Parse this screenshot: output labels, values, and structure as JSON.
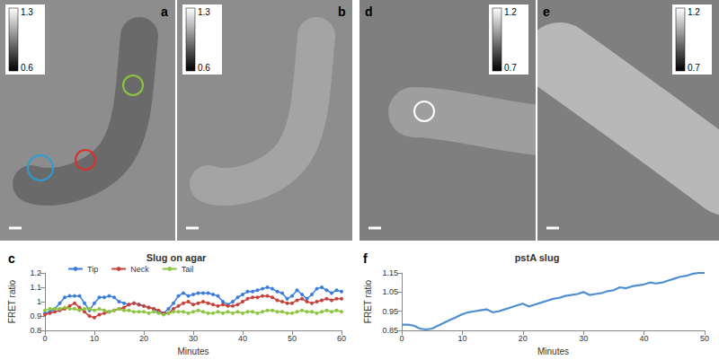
{
  "images": [
    {
      "label": "a",
      "colorbar": [
        0.6,
        1.3
      ]
    },
    {
      "label": "b",
      "colorbar": [
        0.6,
        1.3
      ]
    },
    {
      "label": "d",
      "colorbar": [
        0.7,
        1.2
      ]
    },
    {
      "label": "e",
      "colorbar": [
        0.7,
        1.2
      ]
    }
  ],
  "chart_data": [
    {
      "type": "line",
      "panel": "c",
      "title": "Slug on agar",
      "x_label": "Minutes",
      "y_label": "FRET ratio",
      "x": [
        0,
        1,
        2,
        3,
        4,
        5,
        6,
        7,
        8,
        9,
        10,
        11,
        12,
        13,
        14,
        15,
        16,
        17,
        18,
        19,
        20,
        21,
        22,
        23,
        24,
        25,
        26,
        27,
        28,
        29,
        30,
        31,
        32,
        33,
        34,
        35,
        36,
        37,
        38,
        39,
        40,
        41,
        42,
        43,
        44,
        45,
        46,
        47,
        48,
        49,
        50,
        51,
        52,
        53,
        54,
        55,
        56,
        57,
        58,
        59,
        60
      ],
      "series": [
        {
          "name": "Tip",
          "color": "#3b7ddd",
          "marker": "circle",
          "values": [
            0.92,
            0.93,
            0.95,
            0.99,
            1.03,
            1.04,
            1.04,
            1.04,
            0.99,
            0.94,
            0.99,
            1.03,
            1.03,
            1.04,
            1.03,
            1.0,
            0.99,
            0.98,
            0.99,
            0.98,
            0.97,
            0.96,
            0.95,
            0.93,
            0.92,
            0.95,
            0.99,
            1.04,
            1.06,
            1.04,
            1.05,
            1.06,
            1.06,
            1.06,
            1.05,
            1.04,
            1.0,
            0.98,
            1.0,
            1.03,
            1.05,
            1.07,
            1.07,
            1.08,
            1.09,
            1.1,
            1.09,
            1.07,
            1.06,
            1.02,
            1.04,
            1.08,
            1.05,
            1.02,
            1.05,
            1.09,
            1.1,
            1.08,
            1.06,
            1.08,
            1.07
          ]
        },
        {
          "name": "Neck",
          "color": "#c8413b",
          "marker": "circle",
          "values": [
            0.91,
            0.92,
            0.93,
            0.94,
            0.95,
            0.97,
            0.99,
            0.96,
            0.93,
            0.9,
            0.89,
            0.91,
            0.92,
            0.93,
            0.94,
            0.95,
            0.96,
            0.98,
            0.99,
            0.98,
            0.97,
            0.96,
            0.95,
            0.94,
            0.92,
            0.92,
            0.95,
            0.97,
            0.99,
            1.0,
            0.98,
            0.99,
            1.0,
            0.99,
            0.98,
            0.97,
            0.98,
            0.97,
            0.97,
            0.98,
            1.0,
            1.02,
            1.03,
            1.03,
            1.04,
            1.04,
            1.03,
            1.01,
            1.0,
            0.99,
            0.99,
            1.01,
            1.02,
            1.0,
            0.99,
            1.0,
            1.01,
            1.02,
            1.01,
            1.02,
            1.02
          ]
        },
        {
          "name": "Tail",
          "color": "#8cc63f",
          "marker": "circle",
          "values": [
            0.94,
            0.95,
            0.95,
            0.95,
            0.96,
            0.95,
            0.95,
            0.94,
            0.95,
            0.95,
            0.94,
            0.95,
            0.94,
            0.93,
            0.94,
            0.95,
            0.94,
            0.94,
            0.93,
            0.93,
            0.93,
            0.92,
            0.93,
            0.92,
            0.91,
            0.92,
            0.93,
            0.93,
            0.93,
            0.92,
            0.93,
            0.94,
            0.93,
            0.92,
            0.92,
            0.93,
            0.92,
            0.93,
            0.92,
            0.93,
            0.92,
            0.93,
            0.93,
            0.92,
            0.93,
            0.94,
            0.94,
            0.93,
            0.93,
            0.92,
            0.92,
            0.93,
            0.94,
            0.93,
            0.93,
            0.92,
            0.93,
            0.94,
            0.93,
            0.94,
            0.93
          ]
        }
      ],
      "xlim": [
        0,
        60
      ],
      "xticks": [
        0,
        10,
        20,
        30,
        40,
        50,
        60
      ],
      "ylim": [
        0.8,
        1.2
      ],
      "yticks": [
        0.8,
        0.9,
        1,
        1.1,
        1.2
      ],
      "legend": "top",
      "grid": false
    },
    {
      "type": "line",
      "panel": "f",
      "title": "pstA slug",
      "x_label": "Minutes",
      "y_label": "FRET ratio",
      "x": [
        0,
        1,
        2,
        3,
        4,
        5,
        6,
        7,
        8,
        9,
        10,
        11,
        12,
        13,
        14,
        15,
        16,
        17,
        18,
        19,
        20,
        21,
        22,
        23,
        24,
        25,
        26,
        27,
        28,
        29,
        30,
        31,
        32,
        33,
        34,
        35,
        36,
        37,
        38,
        39,
        40,
        41,
        42,
        43,
        44,
        45,
        46,
        47,
        48,
        49,
        50
      ],
      "series": [
        {
          "name": "pstA slug",
          "color": "#4f8fd0",
          "marker": "none",
          "values": [
            0.88,
            0.88,
            0.875,
            0.86,
            0.855,
            0.86,
            0.875,
            0.89,
            0.905,
            0.92,
            0.935,
            0.945,
            0.95,
            0.955,
            0.96,
            0.945,
            0.95,
            0.96,
            0.97,
            0.98,
            0.99,
            0.975,
            0.985,
            0.995,
            1.005,
            1.015,
            1.02,
            1.03,
            1.035,
            1.04,
            1.05,
            1.035,
            1.04,
            1.045,
            1.055,
            1.06,
            1.075,
            1.07,
            1.08,
            1.085,
            1.09,
            1.1,
            1.095,
            1.1,
            1.11,
            1.12,
            1.13,
            1.135,
            1.145,
            1.15,
            1.15
          ]
        }
      ],
      "xlim": [
        0,
        50
      ],
      "xticks": [
        0,
        10,
        20,
        30,
        40,
        50
      ],
      "ylim": [
        0.85,
        1.15
      ],
      "yticks": [
        0.85,
        0.95,
        1.05,
        1.15
      ],
      "grid": false
    }
  ]
}
